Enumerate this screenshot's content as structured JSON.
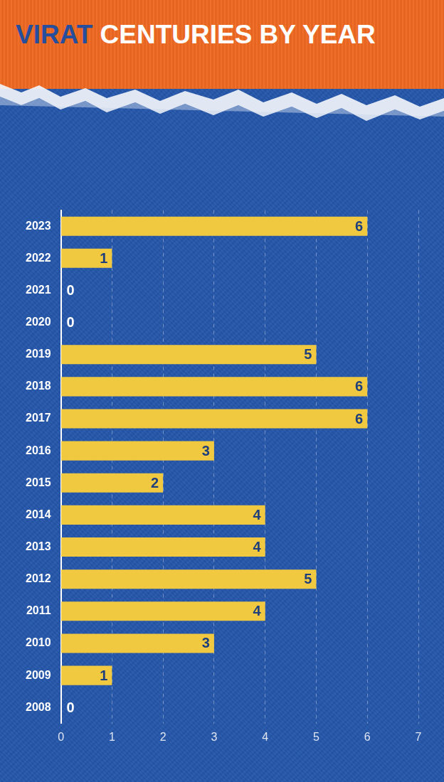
{
  "chart_data": {
    "type": "bar",
    "title": "VIRAT CENTURIES BY YEAR",
    "orientation": "horizontal",
    "categories": [
      "2023",
      "2022",
      "2021",
      "2020",
      "2019",
      "2018",
      "2017",
      "2016",
      "2015",
      "2014",
      "2013",
      "2012",
      "2011",
      "2010",
      "2009",
      "2008"
    ],
    "values": [
      6,
      1,
      0,
      0,
      5,
      6,
      6,
      3,
      2,
      4,
      4,
      5,
      4,
      3,
      1,
      0
    ],
    "color": "#f0c940",
    "xlim": [
      0,
      7
    ],
    "xticks": [
      0,
      1,
      2,
      3,
      4,
      5,
      6,
      7
    ],
    "grid": true,
    "data_labels": true
  }
}
